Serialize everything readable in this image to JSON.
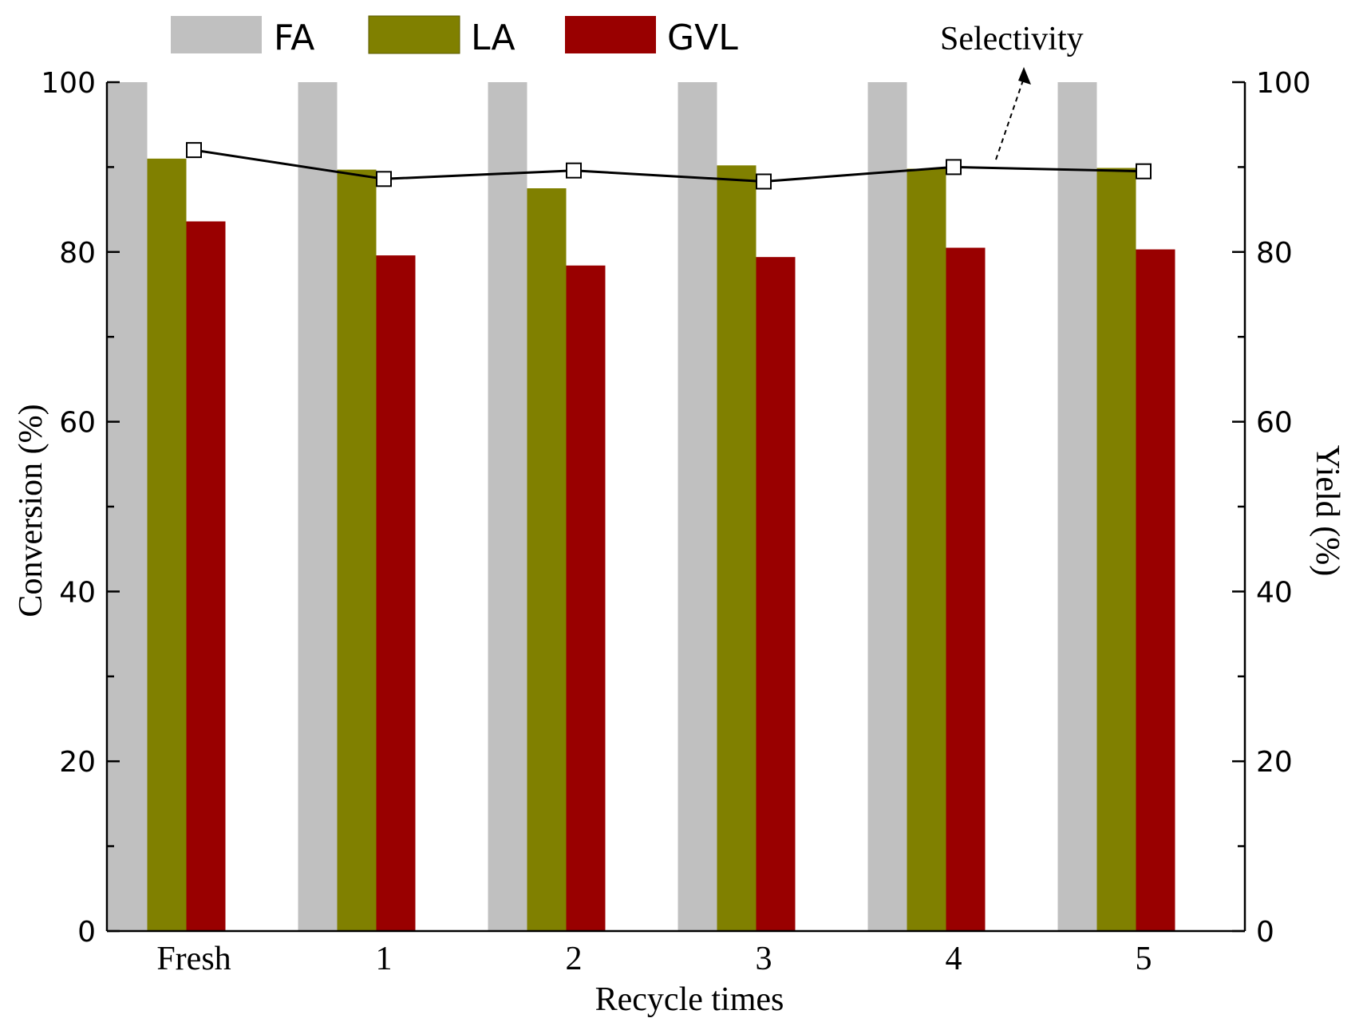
{
  "chart_data": {
    "type": "bar",
    "title": "",
    "xlabel": "Recycle times",
    "ylabel": "Conversion (%)",
    "y2label": "Yield (%)",
    "categories": [
      "Fresh",
      "1",
      "2",
      "3",
      "4",
      "5"
    ],
    "ylim": [
      0,
      100
    ],
    "y2lim": [
      0,
      100
    ],
    "yticks": [
      "0",
      "20",
      "40",
      "60",
      "80",
      "100"
    ],
    "y2ticks": [
      "0",
      "20",
      "40",
      "60",
      "80",
      "100"
    ],
    "series": [
      {
        "name": "FA",
        "type": "bar",
        "color": "#c0c0c0",
        "values": [
          100,
          100,
          100,
          100,
          100,
          100
        ]
      },
      {
        "name": "LA",
        "type": "bar",
        "color": "#808000",
        "values": [
          91.0,
          89.7,
          87.5,
          90.2,
          89.8,
          89.9
        ]
      },
      {
        "name": "GVL",
        "type": "bar",
        "color": "#990000",
        "values": [
          83.6,
          79.6,
          78.4,
          79.4,
          80.5,
          80.3
        ]
      },
      {
        "name": "Selectivity",
        "type": "line",
        "color": "#000000",
        "marker": "open-square",
        "values": [
          92.0,
          88.6,
          89.6,
          88.3,
          90.0,
          89.5
        ]
      }
    ],
    "annotation": {
      "text": "Selectivity",
      "points_to": "Selectivity line at 4",
      "style": "dashed-arrow"
    },
    "legend_position": "top",
    "grid": false
  }
}
